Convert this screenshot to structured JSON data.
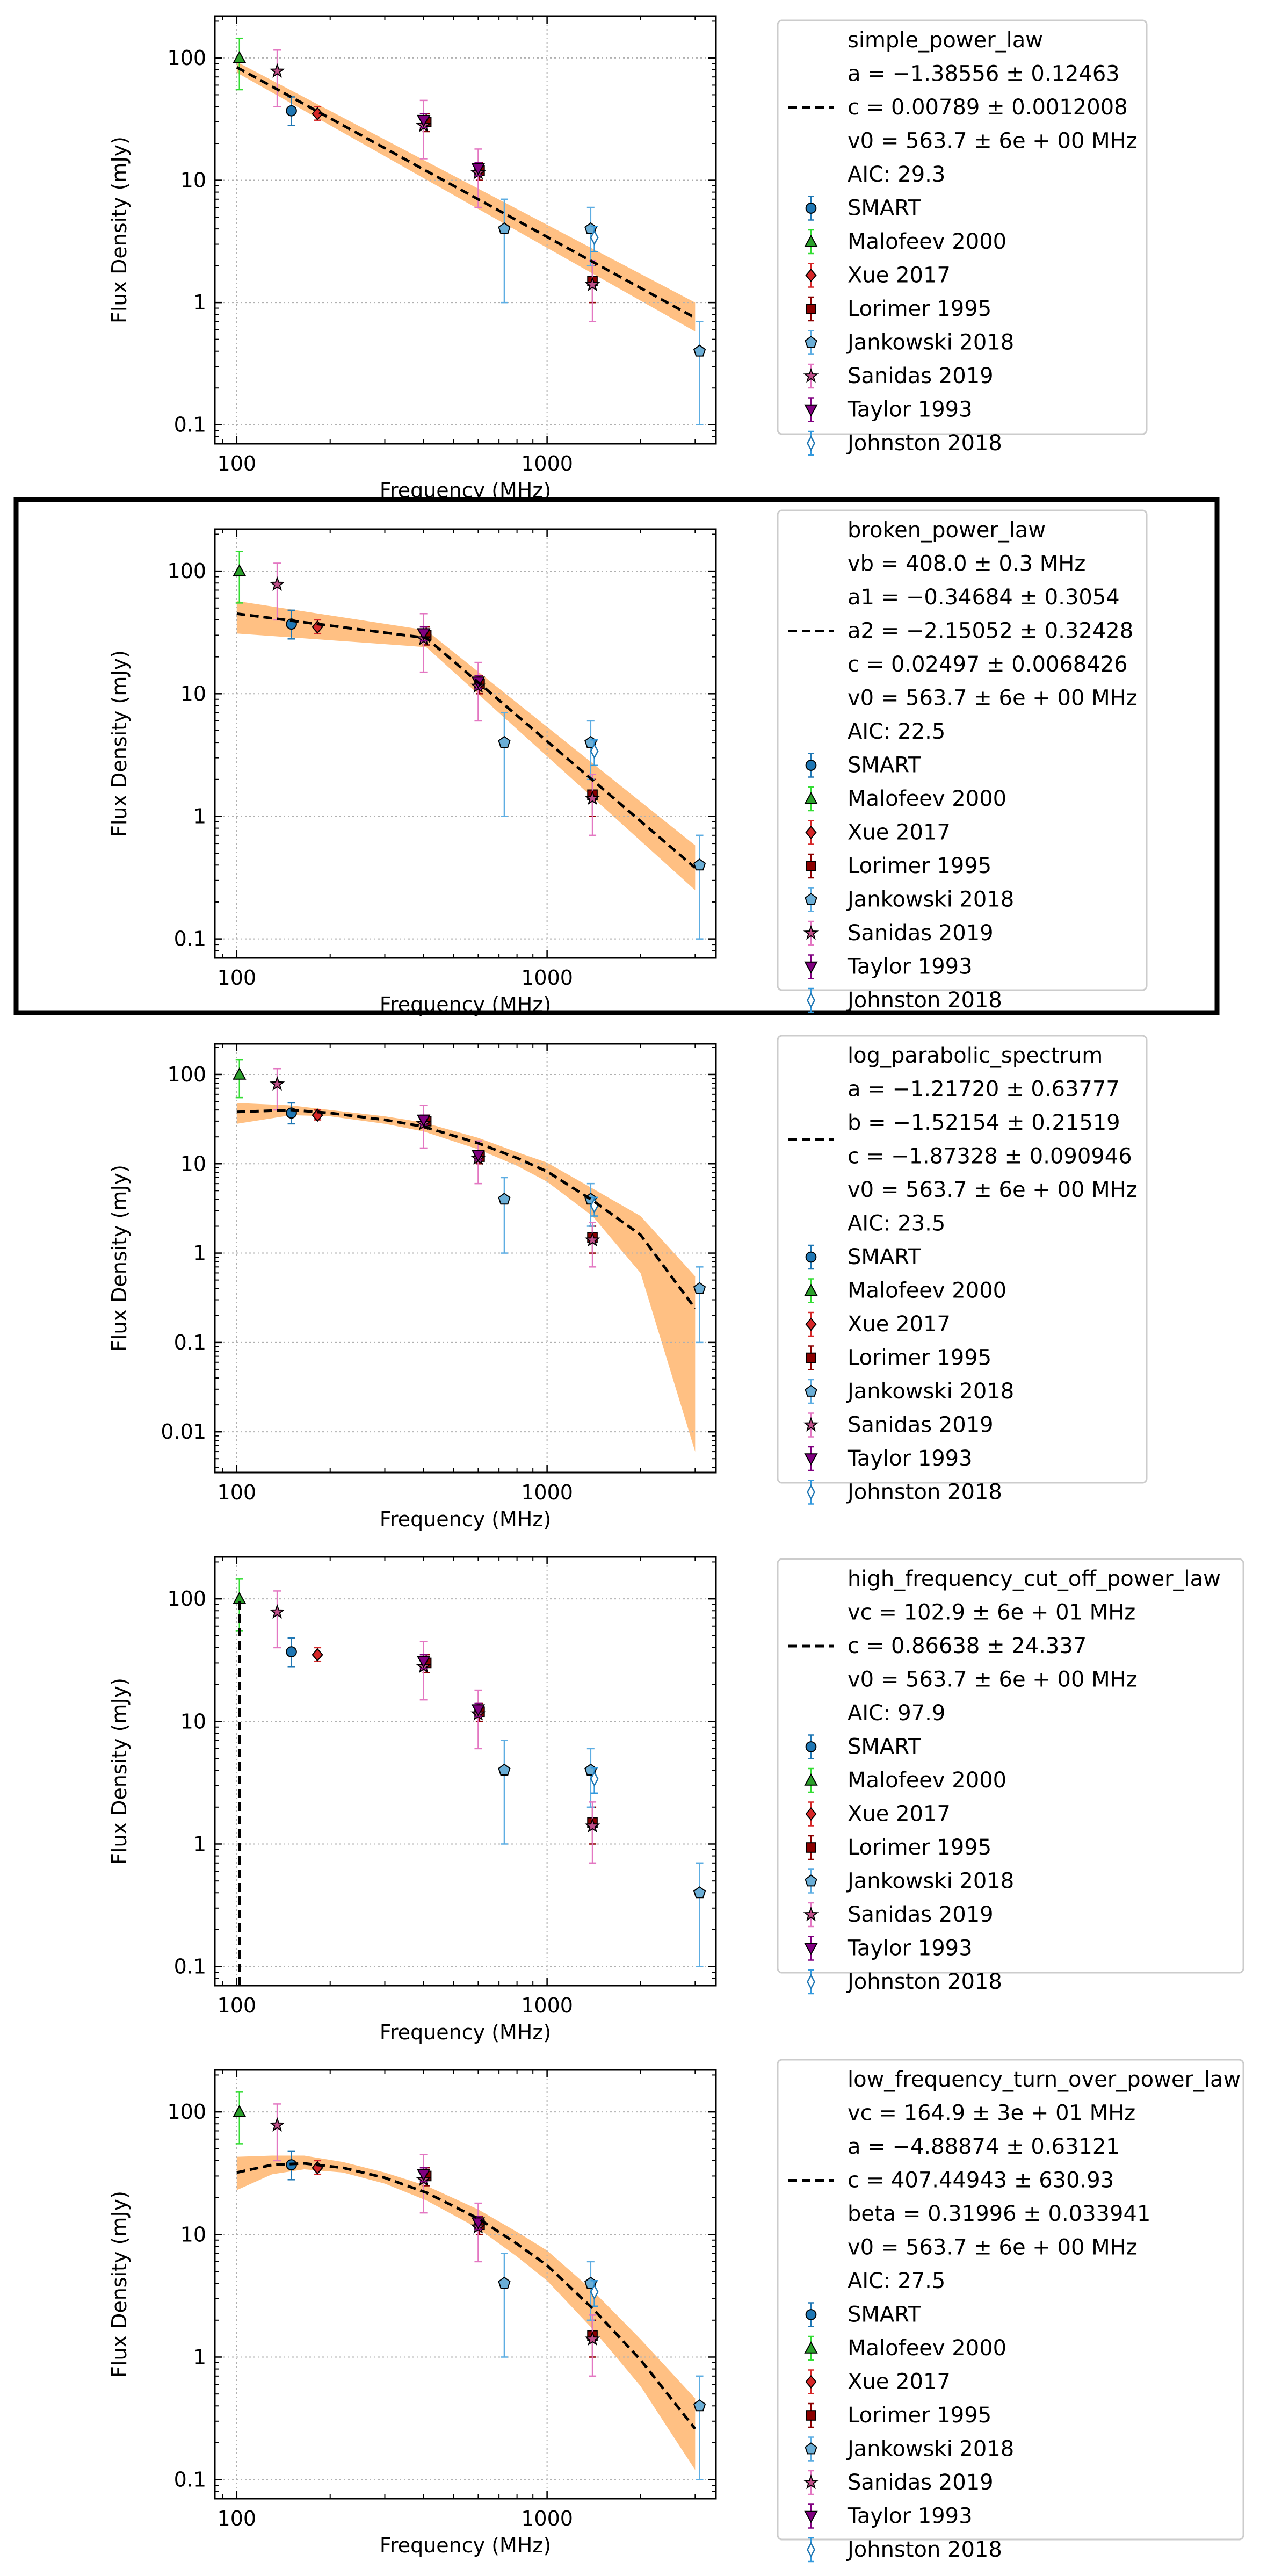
{
  "chart_data": [
    {
      "type": "scatter",
      "model_name": "simple_power_law",
      "fit_params": [
        "a = −1.38556 ± 0.12463",
        "c = 0.00789 ± 0.0012008",
        "v0 = 563.7 ± 6e + 00 MHz",
        "AIC: 29.3"
      ],
      "fit_curve": {
        "x": [
          100,
          3000
        ],
        "y": [
          84,
          0.75
        ],
        "band_low": [
          76,
          0.58
        ],
        "band_high": [
          93,
          1.0
        ]
      },
      "xlabel": "Frequency (MHz)",
      "ylabel": "Flux Density (mJy)",
      "xlim": [
        85,
        3500
      ],
      "ylim": [
        0.07,
        220
      ],
      "xscale": "log",
      "yscale": "log",
      "xticks": [
        100,
        1000
      ],
      "yticks": [
        0.1,
        1,
        10,
        100
      ],
      "grid": true,
      "legend": "right, outside"
    },
    {
      "type": "scatter",
      "model_name": "broken_power_law",
      "fit_params": [
        "vb = 408.0 ± 0.3 MHz",
        "a1 = −0.34684 ± 0.3054",
        "a2 = −2.15052 ± 0.32428",
        "c = 0.02497 ± 0.0068426",
        "v0 = 563.7 ± 6e + 00 MHz",
        "AIC: 22.5"
      ],
      "fit_curve": {
        "x": [
          100,
          408,
          3000
        ],
        "y": [
          45,
          28.5,
          0.38
        ],
        "band_low": [
          31,
          24,
          0.25
        ],
        "band_high": [
          57,
          33,
          0.58
        ]
      },
      "xlabel": "Frequency (MHz)",
      "ylabel": "Flux Density (mJy)",
      "xlim": [
        85,
        3500
      ],
      "ylim": [
        0.07,
        220
      ],
      "xscale": "log",
      "yscale": "log",
      "xticks": [
        100,
        1000
      ],
      "yticks": [
        0.1,
        1,
        10,
        100
      ],
      "grid": true,
      "legend": "right, outside"
    },
    {
      "type": "scatter",
      "model_name": "log_parabolic_spectrum",
      "fit_params": [
        "a = −1.21720 ± 0.63777",
        "b = −1.52154 ± 0.21519",
        "c = −1.87328 ± 0.090946",
        "v0 = 563.7 ± 6e + 00 MHz",
        "AIC: 23.5"
      ],
      "fit_curve": {
        "x": [
          100,
          150,
          200,
          300,
          400,
          600,
          800,
          1000,
          1400,
          2000,
          3000
        ],
        "y": [
          38,
          40,
          37,
          31,
          26,
          17,
          11.6,
          8.2,
          3.9,
          1.6,
          0.24
        ],
        "band_low": [
          28,
          35,
          34,
          28,
          23,
          14.5,
          9.5,
          6.3,
          2.6,
          0.6,
          0.006
        ],
        "band_high": [
          48,
          45,
          40,
          34,
          29,
          19.5,
          13.5,
          10.3,
          5.3,
          2.6,
          0.55
        ]
      },
      "xlabel": "Frequency (MHz)",
      "ylabel": "Flux Density (mJy)",
      "xlim": [
        85,
        3500
      ],
      "ylim": [
        0.0035,
        220
      ],
      "xscale": "log",
      "yscale": "log",
      "xticks": [
        100,
        1000
      ],
      "yticks": [
        0.01,
        0.1,
        1,
        10,
        100
      ],
      "grid": true,
      "legend": "right, outside"
    },
    {
      "type": "scatter",
      "model_name": "high_frequency_cut_off_power_law",
      "fit_params": [
        "vc = 102.9 ± 6e + 01 MHz",
        "c = 0.86638 ± 24.337",
        "v0 = 563.7 ± 6e + 00 MHz",
        "AIC: 97.9"
      ],
      "fit_curve": {
        "x": [
          102,
          102
        ],
        "y": [
          0.07,
          100
        ],
        "band_low": [],
        "band_high": []
      },
      "xlabel": "Frequency (MHz)",
      "ylabel": "Flux Density (mJy)",
      "xlim": [
        85,
        3500
      ],
      "ylim": [
        0.07,
        220
      ],
      "xscale": "log",
      "yscale": "log",
      "xticks": [
        100,
        1000
      ],
      "yticks": [
        0.1,
        1,
        10,
        100
      ],
      "grid": true,
      "legend": "right, outside"
    },
    {
      "type": "scatter",
      "model_name": "low_frequency_turn_over_power_law",
      "fit_params": [
        "vc = 164.9 ± 3e + 01 MHz",
        "a = −4.88874 ± 0.63121",
        "c = 407.44943 ± 630.93",
        "beta = 0.31996 ± 0.033941",
        "v0 = 563.7 ± 6e + 00 MHz",
        "AIC: 27.5"
      ],
      "fit_curve": {
        "x": [
          100,
          130,
          165,
          220,
          300,
          408,
          600,
          800,
          1000,
          1400,
          2000,
          3000
        ],
        "y": [
          32,
          37,
          38,
          35,
          29,
          22,
          13.5,
          8.4,
          5.6,
          2.5,
          0.95,
          0.26
        ],
        "band_low": [
          23,
          31,
          34,
          32,
          26,
          19,
          11.2,
          6.6,
          4.2,
          1.7,
          0.58,
          0.12
        ],
        "band_high": [
          43,
          44,
          44,
          39,
          32,
          25,
          16,
          10.5,
          7.4,
          3.5,
          1.4,
          0.46
        ]
      },
      "xlabel": "Frequency (MHz)",
      "ylabel": "Flux Density (mJy)",
      "xlim": [
        85,
        3500
      ],
      "ylim": [
        0.07,
        220
      ],
      "xscale": "log",
      "yscale": "log",
      "xticks": [
        100,
        1000
      ],
      "yticks": [
        0.1,
        1,
        10,
        100
      ],
      "grid": true,
      "legend": "right, outside"
    }
  ],
  "series": [
    {
      "name": "SMART",
      "marker": "circle",
      "color": "#1f77b4",
      "errcolor": "#1f77b4",
      "points": [
        {
          "x": 150,
          "y": 37,
          "lo": 28,
          "hi": 48
        }
      ]
    },
    {
      "name": "Malofeev 2000",
      "marker": "triangle",
      "color": "#2ca02c",
      "errcolor": "#33dd33",
      "points": [
        {
          "x": 102,
          "y": 100,
          "lo": 55,
          "hi": 145
        }
      ]
    },
    {
      "name": "Xue 2017",
      "marker": "diamond",
      "color": "#d62728",
      "errcolor": "#d62728",
      "points": [
        {
          "x": 182,
          "y": 35,
          "lo": 31,
          "hi": 40
        }
      ]
    },
    {
      "name": "Lorimer 1995",
      "marker": "square",
      "color": "#8b0000",
      "errcolor": "#8b0000",
      "points": [
        {
          "x": 408,
          "y": 30,
          "lo": 25,
          "hi": 35
        },
        {
          "x": 606,
          "y": 12,
          "lo": 10,
          "hi": 14
        },
        {
          "x": 1400,
          "y": 1.5,
          "lo": 1.0,
          "hi": 2.0
        }
      ]
    },
    {
      "name": "Jankowski 2018",
      "marker": "pentagon",
      "color": "#6baed6",
      "errcolor": "#5dade2",
      "points": [
        {
          "x": 728,
          "y": 4,
          "lo": 1,
          "hi": 7
        },
        {
          "x": 1382,
          "y": 4,
          "lo": 2,
          "hi": 6
        },
        {
          "x": 3100,
          "y": 0.4,
          "lo": 0.1,
          "hi": 0.7
        }
      ]
    },
    {
      "name": "Sanidas 2019",
      "marker": "star",
      "color": "#c0508a",
      "errcolor": "#e377c2",
      "points": [
        {
          "x": 135,
          "y": 78,
          "lo": 40,
          "hi": 116
        },
        {
          "x": 400,
          "y": 28,
          "lo": 15,
          "hi": 45
        },
        {
          "x": 600,
          "y": 11.5,
          "lo": 6,
          "hi": 18
        },
        {
          "x": 1400,
          "y": 1.4,
          "lo": 0.7,
          "hi": 2.2
        }
      ]
    },
    {
      "name": "Taylor 1993",
      "marker": "triangle-down",
      "color": "#800080",
      "errcolor": "#800080",
      "points": [
        {
          "x": 400,
          "y": 31,
          "lo": 27,
          "hi": 35
        },
        {
          "x": 600,
          "y": 12.5,
          "lo": 11,
          "hi": 14
        }
      ]
    },
    {
      "name": "Johnston 2018",
      "marker": "thin-diamond",
      "color": "#1f77b4",
      "errcolor": "#3399dd",
      "points": [
        {
          "x": 1420,
          "y": 3.4,
          "lo": 2.6,
          "hi": 4.2
        }
      ]
    }
  ]
}
